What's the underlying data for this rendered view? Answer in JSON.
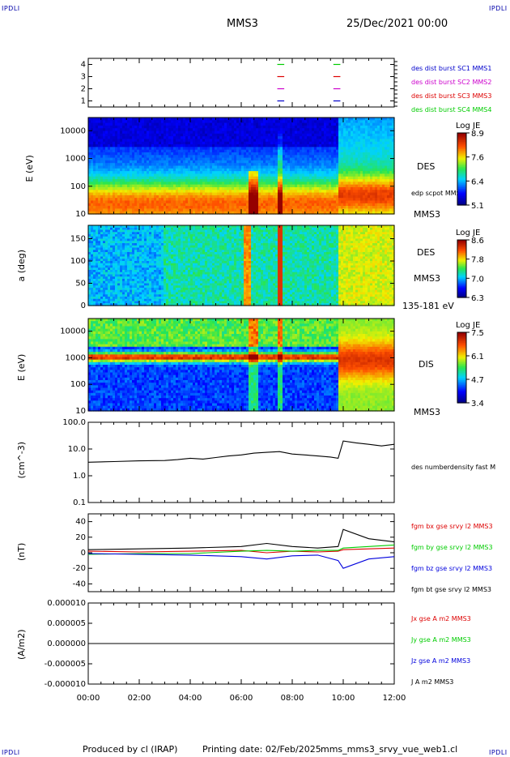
{
  "header": {
    "title": "MMS3",
    "date": "25/Dec/2021 00:00",
    "corner_label": "IPDLI"
  },
  "footer": {
    "produced": "Produced by cl (IRAP)",
    "printing": "Printing date: 02/Feb/2025",
    "file": "mms_mms3_srvy_vue_web1.cl"
  },
  "time_axis": {
    "tick_labels": [
      "00:00",
      "02:00",
      "04:00",
      "06:00",
      "08:00",
      "10:00",
      "12:00"
    ],
    "range_hours": [
      0,
      12
    ]
  },
  "chart_data": [
    {
      "type": "scatter",
      "panel": "burst-indicator",
      "ylim": [
        0.5,
        4.5
      ],
      "yticks": [
        "1",
        "2",
        "3",
        "4"
      ],
      "legend": [
        {
          "text": "des dist burst SC1 MMS1",
          "color": "#0000cc"
        },
        {
          "text": "des dist burst SC2 MMS2",
          "color": "#cc00cc"
        },
        {
          "text": "des dist burst SC3 MMS3",
          "color": "#dd0000"
        },
        {
          "text": "des dist burst SC4 MMS4",
          "color": "#00cc00"
        }
      ],
      "bursts": [
        {
          "t_start": 7.35,
          "t_end": 7.75
        },
        {
          "t_start": 9.55,
          "t_end": 9.95
        }
      ],
      "levels": [
        {
          "y": 4,
          "color": "#00cc00"
        },
        {
          "y": 3,
          "color": "#dd0000"
        },
        {
          "y": 2,
          "color": "#cc00cc"
        },
        {
          "y": 1,
          "color": "#0000cc"
        }
      ]
    },
    {
      "type": "heatmap",
      "panel": "des-energy",
      "ylabel": "E (eV)",
      "yscale": "log",
      "ylim": [
        10,
        30000
      ],
      "yticks": [
        "10",
        "100",
        "1000",
        "10000"
      ],
      "right_labels": [
        "DES",
        "edp scpot MMS3",
        "MMS3"
      ],
      "colorbar": {
        "title": "Log JE",
        "ticks": [
          "8.9",
          "7.6",
          "6.4",
          "5.1"
        ],
        "range": [
          5.1,
          8.9
        ]
      }
    },
    {
      "type": "heatmap",
      "panel": "des-pitch-angle",
      "ylabel": "a (deg)",
      "ylim": [
        0,
        180
      ],
      "yticks": [
        "0",
        "50",
        "100",
        "150"
      ],
      "right_labels": [
        "DES",
        "MMS3",
        "135-181 eV"
      ],
      "colorbar": {
        "title": "Log JE",
        "ticks": [
          "8.6",
          "7.8",
          "7.0",
          "6.3"
        ],
        "range": [
          6.3,
          8.6
        ]
      }
    },
    {
      "type": "heatmap",
      "panel": "dis-energy",
      "ylabel": "E (eV)",
      "yscale": "log",
      "ylim": [
        10,
        30000
      ],
      "yticks": [
        "10",
        "100",
        "1000",
        "10000"
      ],
      "right_labels": [
        "DIS",
        "MMS3"
      ],
      "colorbar": {
        "title": "Log JE",
        "ticks": [
          "7.5",
          "6.1",
          "4.7",
          "3.4"
        ],
        "range": [
          3.4,
          7.5
        ]
      }
    },
    {
      "type": "line",
      "panel": "density",
      "ylabel": "(cm^-3)",
      "yscale": "log",
      "ylim": [
        0.1,
        100
      ],
      "yticks": [
        "0.1",
        "1.0",
        "10.0",
        "100.0"
      ],
      "series": [
        {
          "name": "des numberdensity fast M",
          "color": "#000000",
          "x": [
            0,
            1,
            2,
            3,
            3.5,
            4,
            4.5,
            5,
            5.5,
            6,
            6.5,
            7,
            7.5,
            8,
            8.5,
            9,
            9.5,
            9.8,
            10,
            10.5,
            11,
            11.5,
            12
          ],
          "y": [
            3.2,
            3.4,
            3.6,
            3.7,
            4.0,
            4.5,
            4.2,
            4.8,
            5.5,
            6.0,
            7.0,
            7.5,
            8.0,
            6.5,
            6.0,
            5.5,
            5.0,
            4.5,
            20,
            17,
            15,
            13,
            15
          ]
        }
      ]
    },
    {
      "type": "line",
      "panel": "magnetic-field",
      "ylabel": "(nT)",
      "ylim": [
        -50,
        50
      ],
      "yticks": [
        "-40",
        "-20",
        "0",
        "20",
        "40"
      ],
      "series": [
        {
          "name": "fgm bx gse srvy l2 MMS3",
          "color": "#dd0000",
          "x": [
            0,
            2,
            4,
            6,
            7,
            8,
            9,
            9.8,
            10,
            11,
            12
          ],
          "y": [
            2,
            1,
            2,
            3,
            0,
            2,
            1,
            2,
            4,
            5,
            6
          ]
        },
        {
          "name": "fgm by gse srvy l2 MMS3",
          "color": "#00cc00",
          "x": [
            0,
            2,
            4,
            6,
            7,
            8,
            9,
            9.8,
            10,
            11,
            12
          ],
          "y": [
            -2,
            -1,
            -1,
            2,
            3,
            2,
            3,
            3,
            6,
            8,
            10
          ]
        },
        {
          "name": "fgm bz gse srvy l2 MMS3",
          "color": "#0000dd",
          "x": [
            0,
            2,
            4,
            6,
            7,
            8,
            9,
            9.8,
            10,
            11,
            12
          ],
          "y": [
            -1,
            -2,
            -3,
            -5,
            -8,
            -4,
            -3,
            -10,
            -20,
            -8,
            -5
          ]
        },
        {
          "name": "fgm bt gse srvy l2 MMS3",
          "color": "#000000",
          "x": [
            0,
            2,
            4,
            6,
            7,
            8,
            9,
            9.8,
            10,
            11,
            12
          ],
          "y": [
            4,
            5,
            6,
            8,
            12,
            8,
            6,
            8,
            30,
            18,
            14
          ]
        }
      ]
    },
    {
      "type": "line",
      "panel": "current-density",
      "ylabel": "(A/m2)",
      "ylim": [
        -1e-05,
        1e-05
      ],
      "yticks": [
        "-0.000010",
        "-0.000005",
        "0.000000",
        "0.000005",
        "0.000010"
      ],
      "series": [
        {
          "name": "Jx gse A m2 MMS3",
          "color": "#dd0000",
          "x": [
            0,
            12
          ],
          "y": [
            0,
            0
          ]
        },
        {
          "name": "Jy gse A m2 MMS3",
          "color": "#00cc00",
          "x": [
            0,
            12
          ],
          "y": [
            0,
            0
          ]
        },
        {
          "name": "Jz gse A m2 MMS3",
          "color": "#0000dd",
          "x": [
            0,
            12
          ],
          "y": [
            0,
            0
          ]
        },
        {
          "name": "J A m2 MMS3",
          "color": "#000000",
          "x": [
            0,
            12
          ],
          "y": [
            0,
            0
          ]
        }
      ]
    }
  ]
}
